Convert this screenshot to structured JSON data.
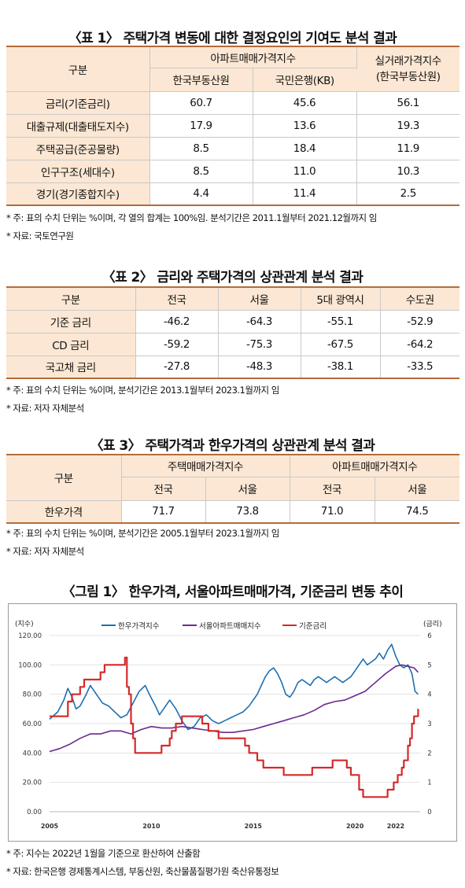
{
  "table1": {
    "title": "〈표 1〉 주택가격 변동에 대한 결정요인의 기여도 분석 결과",
    "header_col0": "구분",
    "header_group": "아파트매매가격지수",
    "header_sub1": "한국부동산원",
    "header_sub2": "국민은행(KB)",
    "header_last_line1": "실거래가격지수",
    "header_last_line2": "(한국부동산원)",
    "rows": [
      {
        "label": "금리(기준금리)",
        "v1": "60.7",
        "v2": "45.6",
        "v3": "56.1"
      },
      {
        "label": "대출규제(대출태도지수)",
        "v1": "17.9",
        "v2": "13.6",
        "v3": "19.3"
      },
      {
        "label": "주택공급(준공물량)",
        "v1": "8.5",
        "v2": "18.4",
        "v3": "11.9"
      },
      {
        "label": "인구구조(세대수)",
        "v1": "8.5",
        "v2": "11.0",
        "v3": "10.3"
      },
      {
        "label": "경기(경기종합지수)",
        "v1": "4.4",
        "v2": "11.4",
        "v3": "2.5"
      }
    ],
    "note1": "* 주: 표의 수치 단위는 %이며, 각 열의 합계는 100%임. 분석기간은 2011.1월부터 2021.12월까지 임",
    "note2": "* 자료: 국토연구원"
  },
  "table2": {
    "title": "〈표 2〉 금리와 주택가격의 상관관계 분석 결과",
    "headers": [
      "구분",
      "전국",
      "서울",
      "5대 광역시",
      "수도권"
    ],
    "rows": [
      {
        "label": "기준 금리",
        "v1": "-46.2",
        "v2": "-64.3",
        "v3": "-55.1",
        "v4": "-52.9"
      },
      {
        "label": "CD 금리",
        "v1": "-59.2",
        "v2": "-75.3",
        "v3": "-67.5",
        "v4": "-64.2"
      },
      {
        "label": "국고채 금리",
        "v1": "-27.8",
        "v2": "-48.3",
        "v3": "-38.1",
        "v4": "-33.5"
      }
    ],
    "note1": "* 주: 표의 수치 단위는 %이며, 분석기간은 2013.1월부터 2023.1월까지 임",
    "note2": "* 자료: 저자 자체분석"
  },
  "table3": {
    "title": "〈표 3〉 주택가격과 한우가격의 상관관계 분석 결과",
    "header_col0": "구분",
    "group1": "주택매매가격지수",
    "group2": "아파트매매가격지수",
    "sub": [
      "전국",
      "서울",
      "전국",
      "서울"
    ],
    "row": {
      "label": "한우가격",
      "v1": "71.7",
      "v2": "73.8",
      "v3": "71.0",
      "v4": "74.5"
    },
    "note1": "* 주: 표의 수치 단위는 %이며, 분석기간은 2005.1월부터 2023.1월까지 임",
    "note2": "* 자료: 저자 자체분석"
  },
  "figure1": {
    "title": "〈그림 1〉 한우가격, 서울아파트매매가격, 기준금리 변동 추이",
    "note1": "* 주: 지수는 2022년 1월을 기준으로 환산하여 산출함",
    "note2": "* 자료: 한국은행 경제통계시스템, 부동산원, 축산물품질평가원 축산유통정보"
  },
  "chart_data": {
    "type": "line",
    "ylabel": "(지수)",
    "y2label": "(금리)",
    "ylim": [
      0,
      120
    ],
    "y2lim": [
      0,
      6
    ],
    "xlim": [
      2005,
      2023.2
    ],
    "y_ticks": [
      "0.00",
      "20.00",
      "40.00",
      "60.00",
      "80.00",
      "100.00",
      "120.00"
    ],
    "y2_ticks": [
      "0",
      "1",
      "2",
      "3",
      "4",
      "5",
      "6"
    ],
    "x_ticks": [
      "2005",
      "2010",
      "2015",
      "2020",
      "2022"
    ],
    "x_tick_values": [
      2005,
      2010,
      2015,
      2020,
      2022
    ],
    "legend_position": "top-center",
    "series": [
      {
        "name": "한우가격지수",
        "color": "#1f6fb0",
        "axis": "left",
        "points": [
          [
            2005.0,
            63
          ],
          [
            2005.4,
            68
          ],
          [
            2005.7,
            76
          ],
          [
            2005.9,
            84
          ],
          [
            2006.1,
            78
          ],
          [
            2006.3,
            70
          ],
          [
            2006.5,
            72
          ],
          [
            2006.8,
            80
          ],
          [
            2007.0,
            86
          ],
          [
            2007.3,
            80
          ],
          [
            2007.6,
            74
          ],
          [
            2007.9,
            72
          ],
          [
            2008.2,
            68
          ],
          [
            2008.5,
            64
          ],
          [
            2008.8,
            66
          ],
          [
            2009.1,
            74
          ],
          [
            2009.4,
            82
          ],
          [
            2009.7,
            86
          ],
          [
            2009.9,
            80
          ],
          [
            2010.2,
            72
          ],
          [
            2010.4,
            66
          ],
          [
            2010.6,
            70
          ],
          [
            2010.9,
            76
          ],
          [
            2011.2,
            70
          ],
          [
            2011.5,
            62
          ],
          [
            2011.8,
            56
          ],
          [
            2012.1,
            58
          ],
          [
            2012.4,
            64
          ],
          [
            2012.7,
            66
          ],
          [
            2013.0,
            62
          ],
          [
            2013.3,
            60
          ],
          [
            2013.6,
            62
          ],
          [
            2013.9,
            64
          ],
          [
            2014.2,
            66
          ],
          [
            2014.5,
            68
          ],
          [
            2014.8,
            72
          ],
          [
            2015.0,
            76
          ],
          [
            2015.2,
            80
          ],
          [
            2015.4,
            86
          ],
          [
            2015.6,
            92
          ],
          [
            2015.8,
            96
          ],
          [
            2016.0,
            98
          ],
          [
            2016.2,
            94
          ],
          [
            2016.4,
            88
          ],
          [
            2016.6,
            80
          ],
          [
            2016.8,
            78
          ],
          [
            2017.0,
            82
          ],
          [
            2017.2,
            88
          ],
          [
            2017.4,
            90
          ],
          [
            2017.6,
            88
          ],
          [
            2017.8,
            86
          ],
          [
            2018.0,
            90
          ],
          [
            2018.2,
            92
          ],
          [
            2018.4,
            90
          ],
          [
            2018.6,
            88
          ],
          [
            2018.8,
            90
          ],
          [
            2019.0,
            92
          ],
          [
            2019.2,
            90
          ],
          [
            2019.4,
            88
          ],
          [
            2019.6,
            90
          ],
          [
            2019.8,
            92
          ],
          [
            2020.0,
            96
          ],
          [
            2020.2,
            100
          ],
          [
            2020.4,
            104
          ],
          [
            2020.6,
            100
          ],
          [
            2020.8,
            102
          ],
          [
            2021.0,
            104
          ],
          [
            2021.2,
            108
          ],
          [
            2021.4,
            104
          ],
          [
            2021.6,
            110
          ],
          [
            2021.8,
            114
          ],
          [
            2022.0,
            106
          ],
          [
            2022.2,
            100
          ],
          [
            2022.4,
            98
          ],
          [
            2022.6,
            100
          ],
          [
            2022.8,
            94
          ],
          [
            2022.95,
            82
          ],
          [
            2023.1,
            80
          ]
        ]
      },
      {
        "name": "서울아파트매매지수",
        "color": "#6a2a8e",
        "axis": "left",
        "points": [
          [
            2005.0,
            41
          ],
          [
            2005.5,
            43
          ],
          [
            2006.0,
            46
          ],
          [
            2006.5,
            50
          ],
          [
            2007.0,
            53
          ],
          [
            2007.5,
            53
          ],
          [
            2008.0,
            55
          ],
          [
            2008.5,
            55
          ],
          [
            2009.0,
            53
          ],
          [
            2009.5,
            56
          ],
          [
            2010.0,
            58
          ],
          [
            2010.5,
            57
          ],
          [
            2011.0,
            57
          ],
          [
            2011.5,
            58
          ],
          [
            2012.0,
            57
          ],
          [
            2012.5,
            56
          ],
          [
            2013.0,
            55
          ],
          [
            2013.5,
            54
          ],
          [
            2014.0,
            54
          ],
          [
            2014.5,
            55
          ],
          [
            2015.0,
            56
          ],
          [
            2015.5,
            58
          ],
          [
            2016.0,
            60
          ],
          [
            2016.5,
            62
          ],
          [
            2017.0,
            64
          ],
          [
            2017.5,
            66
          ],
          [
            2018.0,
            69
          ],
          [
            2018.5,
            73
          ],
          [
            2019.0,
            75
          ],
          [
            2019.5,
            76
          ],
          [
            2020.0,
            79
          ],
          [
            2020.5,
            82
          ],
          [
            2021.0,
            88
          ],
          [
            2021.5,
            94
          ],
          [
            2022.0,
            99
          ],
          [
            2022.3,
            100
          ],
          [
            2022.6,
            99
          ],
          [
            2022.9,
            98
          ],
          [
            2023.1,
            95
          ]
        ]
      },
      {
        "name": "기준금리",
        "color": "#d42a2a",
        "axis": "right",
        "points": [
          [
            2005.0,
            3.25
          ],
          [
            2005.9,
            3.75
          ],
          [
            2006.1,
            4.0
          ],
          [
            2006.5,
            4.25
          ],
          [
            2006.7,
            4.5
          ],
          [
            2007.5,
            4.75
          ],
          [
            2007.7,
            5.0
          ],
          [
            2008.7,
            5.25
          ],
          [
            2008.8,
            4.25
          ],
          [
            2008.9,
            4.0
          ],
          [
            2009.0,
            3.0
          ],
          [
            2009.1,
            2.5
          ],
          [
            2009.2,
            2.0
          ],
          [
            2010.5,
            2.25
          ],
          [
            2010.9,
            2.5
          ],
          [
            2011.0,
            2.75
          ],
          [
            2011.2,
            3.0
          ],
          [
            2011.5,
            3.25
          ],
          [
            2012.5,
            3.0
          ],
          [
            2012.8,
            2.75
          ],
          [
            2013.3,
            2.5
          ],
          [
            2014.6,
            2.25
          ],
          [
            2014.8,
            2.0
          ],
          [
            2015.2,
            1.75
          ],
          [
            2015.5,
            1.5
          ],
          [
            2016.5,
            1.25
          ],
          [
            2017.9,
            1.5
          ],
          [
            2018.9,
            1.75
          ],
          [
            2019.6,
            1.5
          ],
          [
            2019.8,
            1.25
          ],
          [
            2020.2,
            0.75
          ],
          [
            2020.4,
            0.5
          ],
          [
            2021.6,
            0.75
          ],
          [
            2021.9,
            1.0
          ],
          [
            2022.1,
            1.25
          ],
          [
            2022.3,
            1.5
          ],
          [
            2022.4,
            1.75
          ],
          [
            2022.6,
            2.25
          ],
          [
            2022.7,
            2.5
          ],
          [
            2022.8,
            3.0
          ],
          [
            2022.9,
            3.25
          ],
          [
            2023.1,
            3.5
          ]
        ]
      }
    ]
  }
}
